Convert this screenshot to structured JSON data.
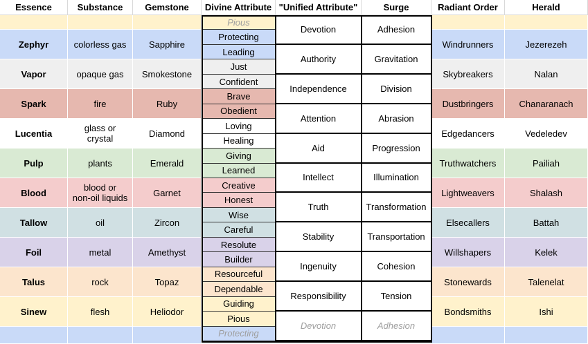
{
  "columns": [
    "Essence",
    "Substance",
    "Gemstone",
    "Divine Attribute",
    "\"Unified Attribute\"",
    "Surge",
    "Radiant Order",
    "Herald"
  ],
  "rows": [
    {
      "essence": "Zephyr",
      "substance": "colorless gas",
      "gemstone": "Sapphire",
      "order": "Windrunners",
      "herald": "Jezerezeh",
      "color": "#c9daf8"
    },
    {
      "essence": "Vapor",
      "substance": "opaque gas",
      "gemstone": "Smokestone",
      "order": "Skybreakers",
      "herald": "Nalan",
      "color": "#efefef"
    },
    {
      "essence": "Spark",
      "substance": "fire",
      "gemstone": "Ruby",
      "order": "Dustbringers",
      "herald": "Chanaranach",
      "color": "#e6b8af"
    },
    {
      "essence": "Lucentia",
      "substance": "glass or\ncrystal",
      "gemstone": "Diamond",
      "order": "Edgedancers",
      "herald": "Vedeledev",
      "color": "#ffffff"
    },
    {
      "essence": "Pulp",
      "substance": "plants",
      "gemstone": "Emerald",
      "order": "Truthwatchers",
      "herald": "Pailiah",
      "color": "#d9ead3"
    },
    {
      "essence": "Blood",
      "substance": "blood or\nnon-oil liquids",
      "gemstone": "Garnet",
      "order": "Lightweavers",
      "herald": "Shalash",
      "color": "#f4cccc"
    },
    {
      "essence": "Tallow",
      "substance": "oil",
      "gemstone": "Zircon",
      "order": "Elsecallers",
      "herald": "Battah",
      "color": "#d0e0e3"
    },
    {
      "essence": "Foil",
      "substance": "metal",
      "gemstone": "Amethyst",
      "order": "Willshapers",
      "herald": "Kelek",
      "color": "#d9d2e9"
    },
    {
      "essence": "Talus",
      "substance": "rock",
      "gemstone": "Topaz",
      "order": "Stonewards",
      "herald": "Talenelat",
      "color": "#fce5cd"
    },
    {
      "essence": "Sinew",
      "substance": "flesh",
      "gemstone": "Heliodor",
      "order": "Bondsmiths",
      "herald": "Ishi",
      "color": "#fff2cc"
    }
  ],
  "top_fill_color": "#fff2cc",
  "bottom_fill_color": "#c9daf8",
  "divine_attributes": [
    {
      "text": "Pious",
      "dim": true,
      "color": "#fff2cc"
    },
    {
      "text": "Protecting",
      "dim": false,
      "color": "#c9daf8"
    },
    {
      "text": "Leading",
      "dim": false,
      "color": "#c9daf8"
    },
    {
      "text": "Just",
      "dim": false,
      "color": "#efefef"
    },
    {
      "text": "Confident",
      "dim": false,
      "color": "#efefef"
    },
    {
      "text": "Brave",
      "dim": false,
      "color": "#e6b8af"
    },
    {
      "text": "Obedient",
      "dim": false,
      "color": "#e6b8af"
    },
    {
      "text": "Loving",
      "dim": false,
      "color": "#ffffff"
    },
    {
      "text": "Healing",
      "dim": false,
      "color": "#ffffff"
    },
    {
      "text": "Giving",
      "dim": false,
      "color": "#d9ead3"
    },
    {
      "text": "Learned",
      "dim": false,
      "color": "#d9ead3"
    },
    {
      "text": "Creative",
      "dim": false,
      "color": "#f4cccc"
    },
    {
      "text": "Honest",
      "dim": false,
      "color": "#f4cccc"
    },
    {
      "text": "Wise",
      "dim": false,
      "color": "#d0e0e3"
    },
    {
      "text": "Careful",
      "dim": false,
      "color": "#d0e0e3"
    },
    {
      "text": "Resolute",
      "dim": false,
      "color": "#d9d2e9"
    },
    {
      "text": "Builder",
      "dim": false,
      "color": "#d9d2e9"
    },
    {
      "text": "Resourceful",
      "dim": false,
      "color": "#fce5cd"
    },
    {
      "text": "Dependable",
      "dim": false,
      "color": "#fce5cd"
    },
    {
      "text": "Guiding",
      "dim": false,
      "color": "#fff2cc"
    },
    {
      "text": "Pious",
      "dim": false,
      "color": "#fff2cc"
    },
    {
      "text": "Protecting",
      "dim": true,
      "color": "#c9daf8"
    }
  ],
  "unified": [
    {
      "attribute": "Devotion",
      "surge": "Adhesion",
      "dim": false
    },
    {
      "attribute": "Authority",
      "surge": "Gravitation",
      "dim": false
    },
    {
      "attribute": "Independence",
      "surge": "Division",
      "dim": false
    },
    {
      "attribute": "Attention",
      "surge": "Abrasion",
      "dim": false
    },
    {
      "attribute": "Aid",
      "surge": "Progression",
      "dim": false
    },
    {
      "attribute": "Intellect",
      "surge": "Illumination",
      "dim": false
    },
    {
      "attribute": "Truth",
      "surge": "Transformation",
      "dim": false
    },
    {
      "attribute": "Stability",
      "surge": "Transportation",
      "dim": false
    },
    {
      "attribute": "Ingenuity",
      "surge": "Cohesion",
      "dim": false
    },
    {
      "attribute": "Responsibility",
      "surge": "Tension",
      "dim": false
    },
    {
      "attribute": "Devotion",
      "surge": "Adhesion",
      "dim": true
    }
  ]
}
